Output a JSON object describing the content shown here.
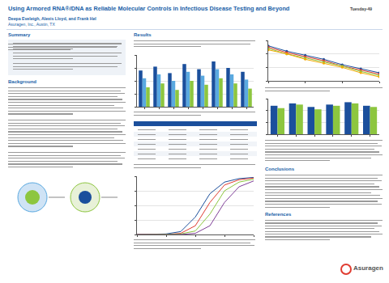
{
  "header": {
    "title": "Using Armored RNA®/DNA as Reliable Molecular Controls in Infectious Disease Testing and Beyond",
    "session": "Tuesday-49",
    "authors": "Deepa Eveleigh, Alexis Lloyd, and Frank Hel",
    "affiliation": "Asuragen, Inc., Austin, TX"
  },
  "sections": [
    {
      "heading": "Summary"
    },
    {
      "heading": "Background"
    },
    {
      "heading": "Results"
    },
    {
      "heading": "Conclusions"
    },
    {
      "heading": "References"
    }
  ],
  "logo": "Asuragen",
  "chart_data": [
    {
      "type": "bar",
      "x": [
        1,
        2,
        3,
        4,
        5,
        6,
        7,
        8
      ],
      "xlim": [
        0.5,
        8.5
      ],
      "xticks": [
        1,
        2,
        3,
        4,
        5,
        6,
        7,
        8
      ],
      "series": [
        {
          "color": "#1b4f9c",
          "values": [
            28,
            31,
            26,
            33,
            29,
            35,
            30,
            27
          ]
        },
        {
          "color": "#5aa9e0",
          "values": [
            22,
            25,
            20,
            27,
            24,
            29,
            25,
            21
          ]
        },
        {
          "color": "#8dc63f",
          "values": [
            15,
            18,
            13,
            20,
            17,
            22,
            18,
            14
          ]
        }
      ],
      "ylim": [
        0,
        40
      ],
      "yticks": [
        0,
        10,
        20,
        30,
        40
      ],
      "grid": true,
      "tick_labels": false
    },
    {
      "type": "line",
      "x": [
        0,
        1,
        2,
        3,
        4,
        5,
        6
      ],
      "xlim": [
        0,
        6
      ],
      "xticks": [
        0,
        2,
        4,
        6
      ],
      "series": [
        {
          "color": "#1b4f9c",
          "values": [
            36,
            32,
            29,
            26,
            22,
            19,
            16
          ]
        },
        {
          "color": "#e03c31",
          "values": [
            35,
            31,
            28,
            25,
            21,
            18,
            15
          ]
        },
        {
          "color": "#8dc63f",
          "values": [
            34,
            30,
            27,
            24,
            21,
            17,
            14
          ]
        },
        {
          "color": "#f2a900",
          "values": [
            33,
            30,
            26,
            23,
            20,
            16,
            13
          ]
        }
      ],
      "marker": "circle",
      "ylim": [
        10,
        40
      ],
      "yticks": [
        10,
        20,
        30,
        40
      ],
      "grid": true,
      "tick_labels": false
    },
    {
      "type": "bar",
      "x": [
        1,
        2,
        3,
        4,
        5,
        6
      ],
      "xlim": [
        0.5,
        6.5
      ],
      "xticks": [
        1,
        2,
        3,
        4,
        5,
        6
      ],
      "series": [
        {
          "color": "#1b4f9c",
          "values": [
            24,
            26,
            23,
            25,
            27,
            24
          ]
        },
        {
          "color": "#8dc63f",
          "values": [
            22,
            25,
            21,
            24,
            26,
            23
          ]
        }
      ],
      "ylim": [
        0,
        30
      ],
      "yticks": [
        0,
        10,
        20,
        30
      ],
      "grid": true,
      "tick_labels": false
    },
    {
      "type": "line",
      "x": [
        0,
        5,
        10,
        15,
        20,
        25,
        30,
        35,
        40
      ],
      "xlim": [
        0,
        40
      ],
      "xticks": [
        0,
        10,
        20,
        30,
        40
      ],
      "series": [
        {
          "color": "#1b4f9c",
          "values": [
            0,
            0,
            1,
            5,
            30,
            70,
            90,
            96,
            98
          ]
        },
        {
          "color": "#e03c31",
          "values": [
            0,
            0,
            0,
            2,
            15,
            55,
            85,
            94,
            97
          ]
        },
        {
          "color": "#8dc63f",
          "values": [
            0,
            0,
            0,
            1,
            6,
            35,
            75,
            90,
            95
          ]
        },
        {
          "color": "#7f3f98",
          "values": [
            0,
            0,
            0,
            0,
            2,
            15,
            55,
            82,
            92
          ]
        }
      ],
      "ylim": [
        0,
        100
      ],
      "yticks": [
        0,
        25,
        50,
        75,
        100
      ],
      "grid": true,
      "tick_labels": false
    }
  ]
}
